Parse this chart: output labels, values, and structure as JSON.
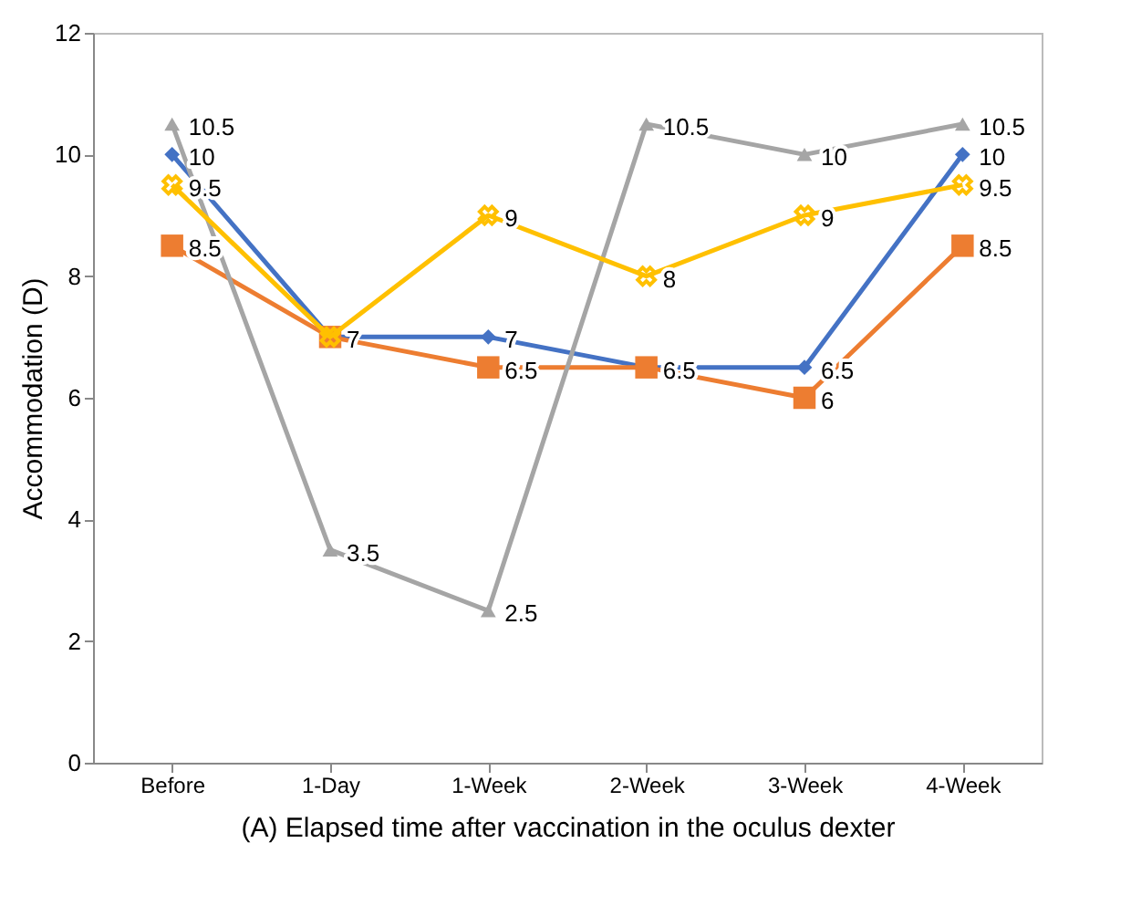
{
  "chart_data": {
    "type": "line",
    "xlabel": "(A) Elapsed time after vaccination in the oculus dexter",
    "ylabel": "Accommodation  (D)",
    "categories": [
      "Before",
      "1-Day",
      "1-Week",
      "2-Week",
      "3-Week",
      "4-Week"
    ],
    "ylim": [
      0,
      12
    ],
    "yticks": [
      0,
      2,
      4,
      6,
      8,
      10,
      12
    ],
    "grid": false,
    "series": [
      {
        "color": "#4472c4",
        "marker": "diamond",
        "values": [
          10,
          7,
          7,
          6.5,
          6.5,
          10
        ],
        "value_labels": [
          "10",
          "7",
          "7",
          "6.5",
          "6.5",
          "10"
        ]
      },
      {
        "color": "#ed7d31",
        "marker": "square",
        "values": [
          8.5,
          7,
          6.5,
          6.5,
          6,
          8.5
        ],
        "value_labels": [
          "8.5",
          null,
          "6.5",
          null,
          "6",
          "8.5"
        ]
      },
      {
        "color": "#a5a5a5",
        "marker": "triangle",
        "values": [
          10.5,
          3.5,
          2.5,
          10.5,
          10,
          10.5
        ],
        "value_labels": [
          "10.5",
          "3.5",
          "2.5",
          "10.5",
          "10",
          "10.5"
        ]
      },
      {
        "color": "#ffc000",
        "marker": "cross",
        "values": [
          9.5,
          7,
          9,
          8,
          9,
          9.5
        ],
        "value_labels": [
          "9.5",
          null,
          "9",
          "8",
          "9",
          "9.5"
        ]
      }
    ]
  }
}
